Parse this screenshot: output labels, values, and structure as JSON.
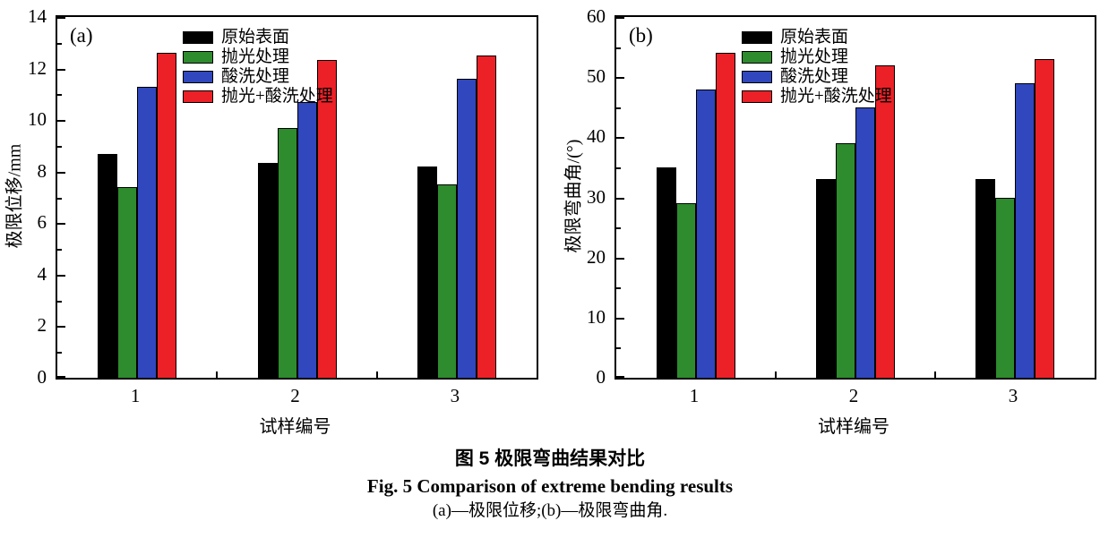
{
  "figure": {
    "caption_cn": "图 5  极限弯曲结果对比",
    "caption_en": "Fig. 5  Comparison of extreme bending results",
    "caption_sub": "(a)—极限位移;(b)—极限弯曲角."
  },
  "colors": {
    "bar_black": "#000000",
    "bar_green": "#2E8B2E",
    "bar_blue": "#3147BD",
    "bar_red": "#EB2127",
    "axis": "#000000",
    "background": "#ffffff"
  },
  "chart_data": [
    {
      "type": "bar",
      "panel_label": "(a)",
      "title": "",
      "xlabel": "试样编号",
      "ylabel": "极限位移/mm",
      "ylim": [
        0,
        14
      ],
      "ytick_step": 2,
      "yminor_step": 1,
      "grid": false,
      "legend_position": "top-inside-right",
      "categories": [
        "1",
        "2",
        "3"
      ],
      "series": [
        {
          "name": "原始表面",
          "color": "#000000",
          "values": [
            8.7,
            8.35,
            8.2
          ]
        },
        {
          "name": "抛光处理",
          "color": "#2E8B2E",
          "values": [
            7.4,
            9.7,
            7.5
          ]
        },
        {
          "name": "酸洗处理",
          "color": "#3147BD",
          "values": [
            11.3,
            10.7,
            11.6
          ]
        },
        {
          "name": "抛光+酸洗处理",
          "color": "#EB2127",
          "values": [
            12.6,
            12.35,
            12.5
          ]
        }
      ]
    },
    {
      "type": "bar",
      "panel_label": "(b)",
      "title": "",
      "xlabel": "试样编号",
      "ylabel": "极限弯曲角/(°)",
      "ylim": [
        0,
        60
      ],
      "ytick_step": 10,
      "yminor_step": 5,
      "grid": false,
      "legend_position": "top-inside-right",
      "categories": [
        "1",
        "2",
        "3"
      ],
      "series": [
        {
          "name": "原始表面",
          "color": "#000000",
          "values": [
            35,
            33,
            33
          ]
        },
        {
          "name": "抛光处理",
          "color": "#2E8B2E",
          "values": [
            29,
            39,
            30
          ]
        },
        {
          "name": "酸洗处理",
          "color": "#3147BD",
          "values": [
            48,
            45,
            49
          ]
        },
        {
          "name": "抛光+酸洗处理",
          "color": "#EB2127",
          "values": [
            54,
            52,
            53
          ]
        }
      ]
    }
  ]
}
